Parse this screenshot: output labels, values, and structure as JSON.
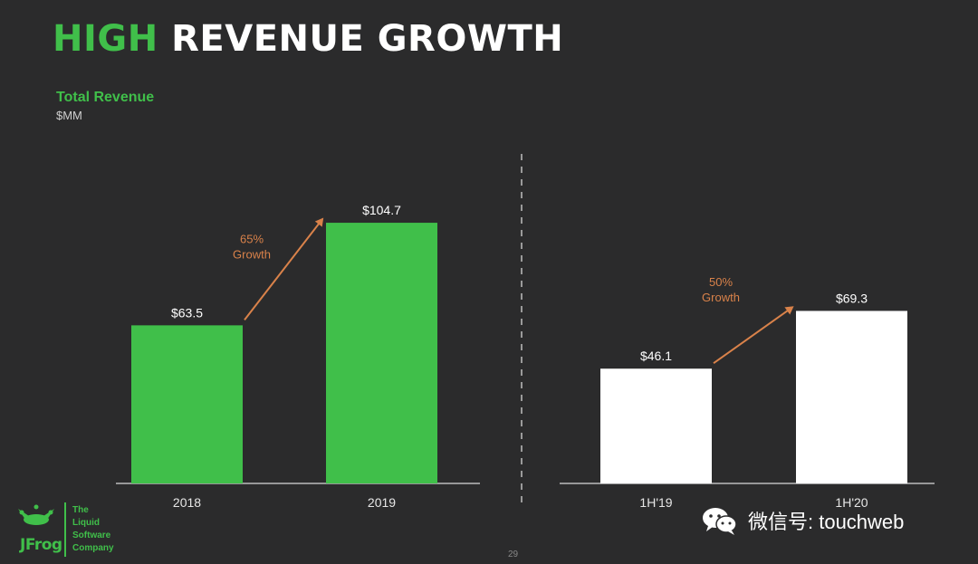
{
  "slide": {
    "title_part1": "HIGH",
    "title_part2": "REVENUE GROWTH",
    "page_number": "29",
    "colors": {
      "background": "#2b2b2c",
      "green": "#40bf4a",
      "white": "#ffffff",
      "arrow": "#d9824a"
    }
  },
  "chart_data": [
    {
      "type": "bar",
      "title": "Total Revenue",
      "subtitle": "$MM",
      "categories": [
        "2018",
        "2019"
      ],
      "values": [
        63.5,
        104.7
      ],
      "value_labels": [
        "$63.5",
        "$104.7"
      ],
      "bar_color": "#40bf4a",
      "annotation": {
        "line1": "65%",
        "line2": "Growth"
      },
      "ylim": [
        0,
        110
      ]
    },
    {
      "type": "bar",
      "categories": [
        "1H'19",
        "1H'20"
      ],
      "values": [
        46.1,
        69.3
      ],
      "value_labels": [
        "$46.1",
        "$69.3"
      ],
      "bar_color": "#ffffff",
      "annotation": {
        "line1": "50%",
        "line2": "Growth"
      },
      "ylim": [
        0,
        110
      ]
    }
  ],
  "logo": {
    "name": "JFrog",
    "tagline": [
      "The",
      "Liquid",
      "Software",
      "Company"
    ]
  },
  "watermark": {
    "text": "微信号: touchweb"
  }
}
